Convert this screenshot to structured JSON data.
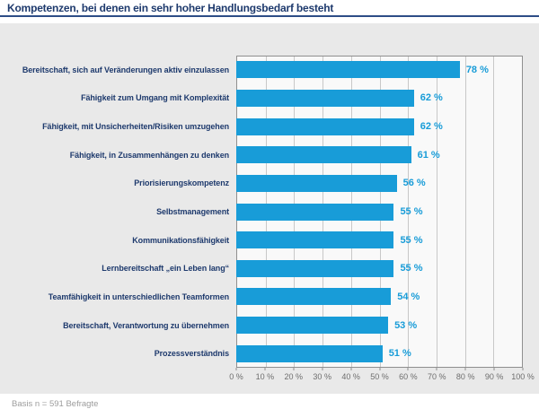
{
  "title": "Kompetenzen, bei denen ein sehr hoher Handlungsbedarf besteht",
  "footer": {
    "basis": "Basis n = 591 Befragte"
  },
  "colors": {
    "bar": "#189cd8",
    "value_label": "#189cd8",
    "category_label": "#1e3a6d",
    "title": "#1e3a6d",
    "panel_background": "#e9e9e9",
    "plot_background": "#f9f9f9",
    "gridline": "#c8c8c8",
    "axis_border": "#8f8f8f"
  },
  "chart_data": {
    "type": "bar",
    "orientation": "horizontal",
    "title": "Kompetenzen, bei denen ein sehr hoher Handlungsbedarf besteht",
    "categories": [
      "Bereitschaft, sich auf Veränderungen aktiv einzulassen",
      "Fähigkeit zum Umgang mit Komplexität",
      "Fähigkeit, mit Unsicherheiten/Risiken umzugehen",
      "Fähigkeit, in Zusammenhängen zu denken",
      "Priorisierungskompetenz",
      "Selbstmanagement",
      "Kommunikationsfähigkeit",
      "Lernbereitschaft „ein Leben lang“",
      "Teamfähigkeit in unterschiedlichen Teamformen",
      "Bereitschaft, Verantwortung zu übernehmen",
      "Prozessverständnis"
    ],
    "values": [
      78,
      62,
      62,
      61,
      56,
      55,
      55,
      55,
      54,
      53,
      51
    ],
    "value_suffix": " %",
    "xlabel": "",
    "ylabel": "",
    "xlim": [
      0,
      100
    ],
    "x_ticks": [
      "0 %",
      "10 %",
      "20 %",
      "30 %",
      "40 %",
      "50 %",
      "60 %",
      "70 %",
      "80 %",
      "90 %",
      "100 %"
    ],
    "grid": true,
    "legend": false,
    "basis_note": "Basis n = 591 Befragte"
  }
}
